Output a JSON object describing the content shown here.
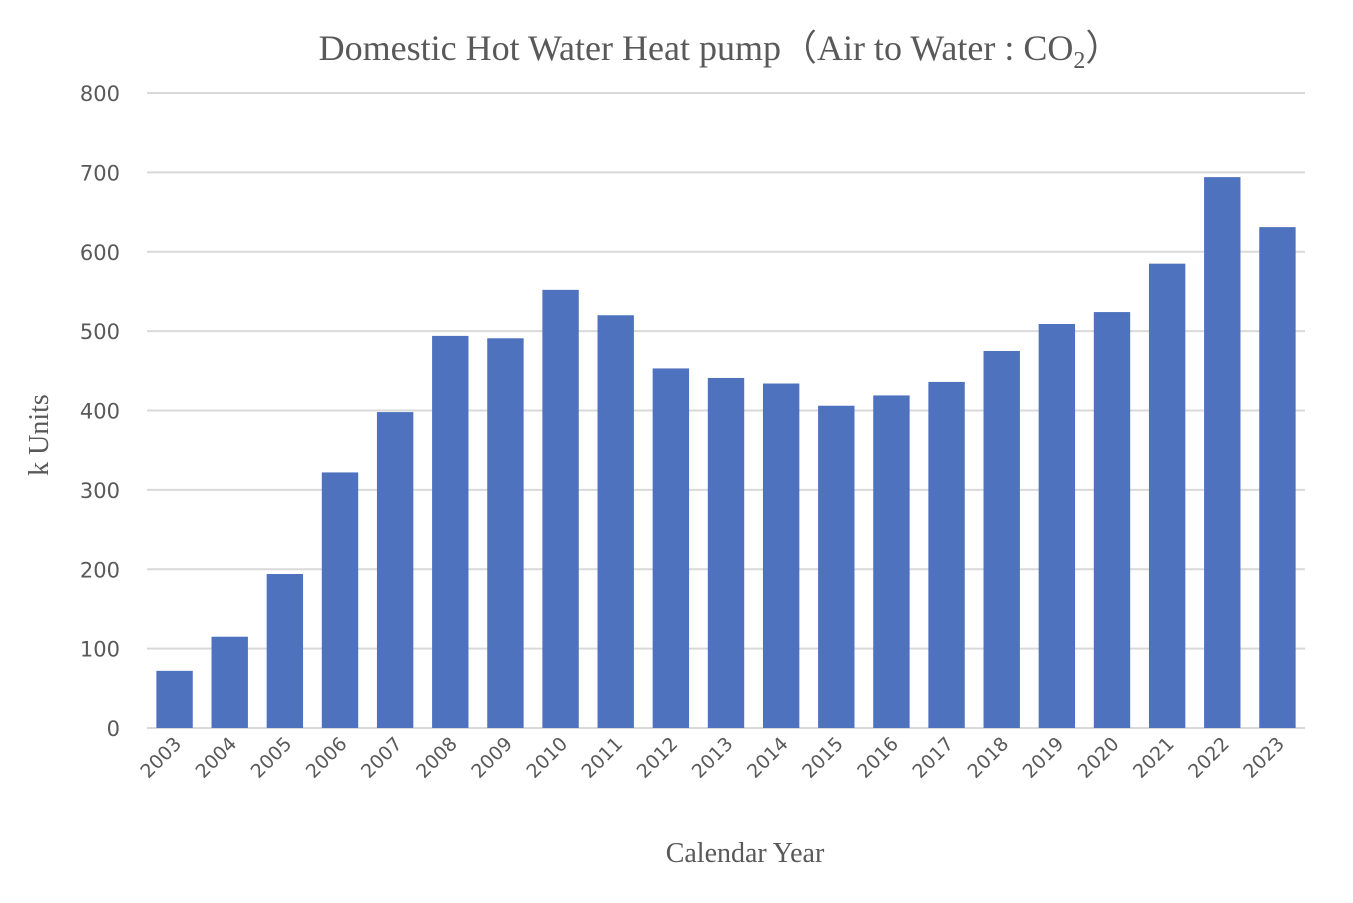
{
  "chart_data": {
    "type": "bar",
    "title": "Domestic Hot Water Heat pump（Air to Water : CO",
    "title_subscript": "2",
    "title_suffix": "）",
    "xlabel": "Calendar Year",
    "ylabel": "k Units",
    "ylim": [
      0,
      800
    ],
    "yticks": [
      0,
      100,
      200,
      300,
      400,
      500,
      600,
      700,
      800
    ],
    "grid": true,
    "legend": "none",
    "bar_color": "#4f72be",
    "categories": [
      "2003",
      "2004",
      "2005",
      "2006",
      "2007",
      "2008",
      "2009",
      "2010",
      "2011",
      "2012",
      "2013",
      "2014",
      "2015",
      "2016",
      "2017",
      "2018",
      "2019",
      "2020",
      "2021",
      "2022",
      "2023"
    ],
    "series": [
      {
        "name": "k Units",
        "values": [
          72,
          115,
          194,
          322,
          398,
          494,
          491,
          552,
          520,
          453,
          441,
          434,
          406,
          419,
          436,
          475,
          509,
          524,
          585,
          694,
          631
        ]
      }
    ]
  }
}
